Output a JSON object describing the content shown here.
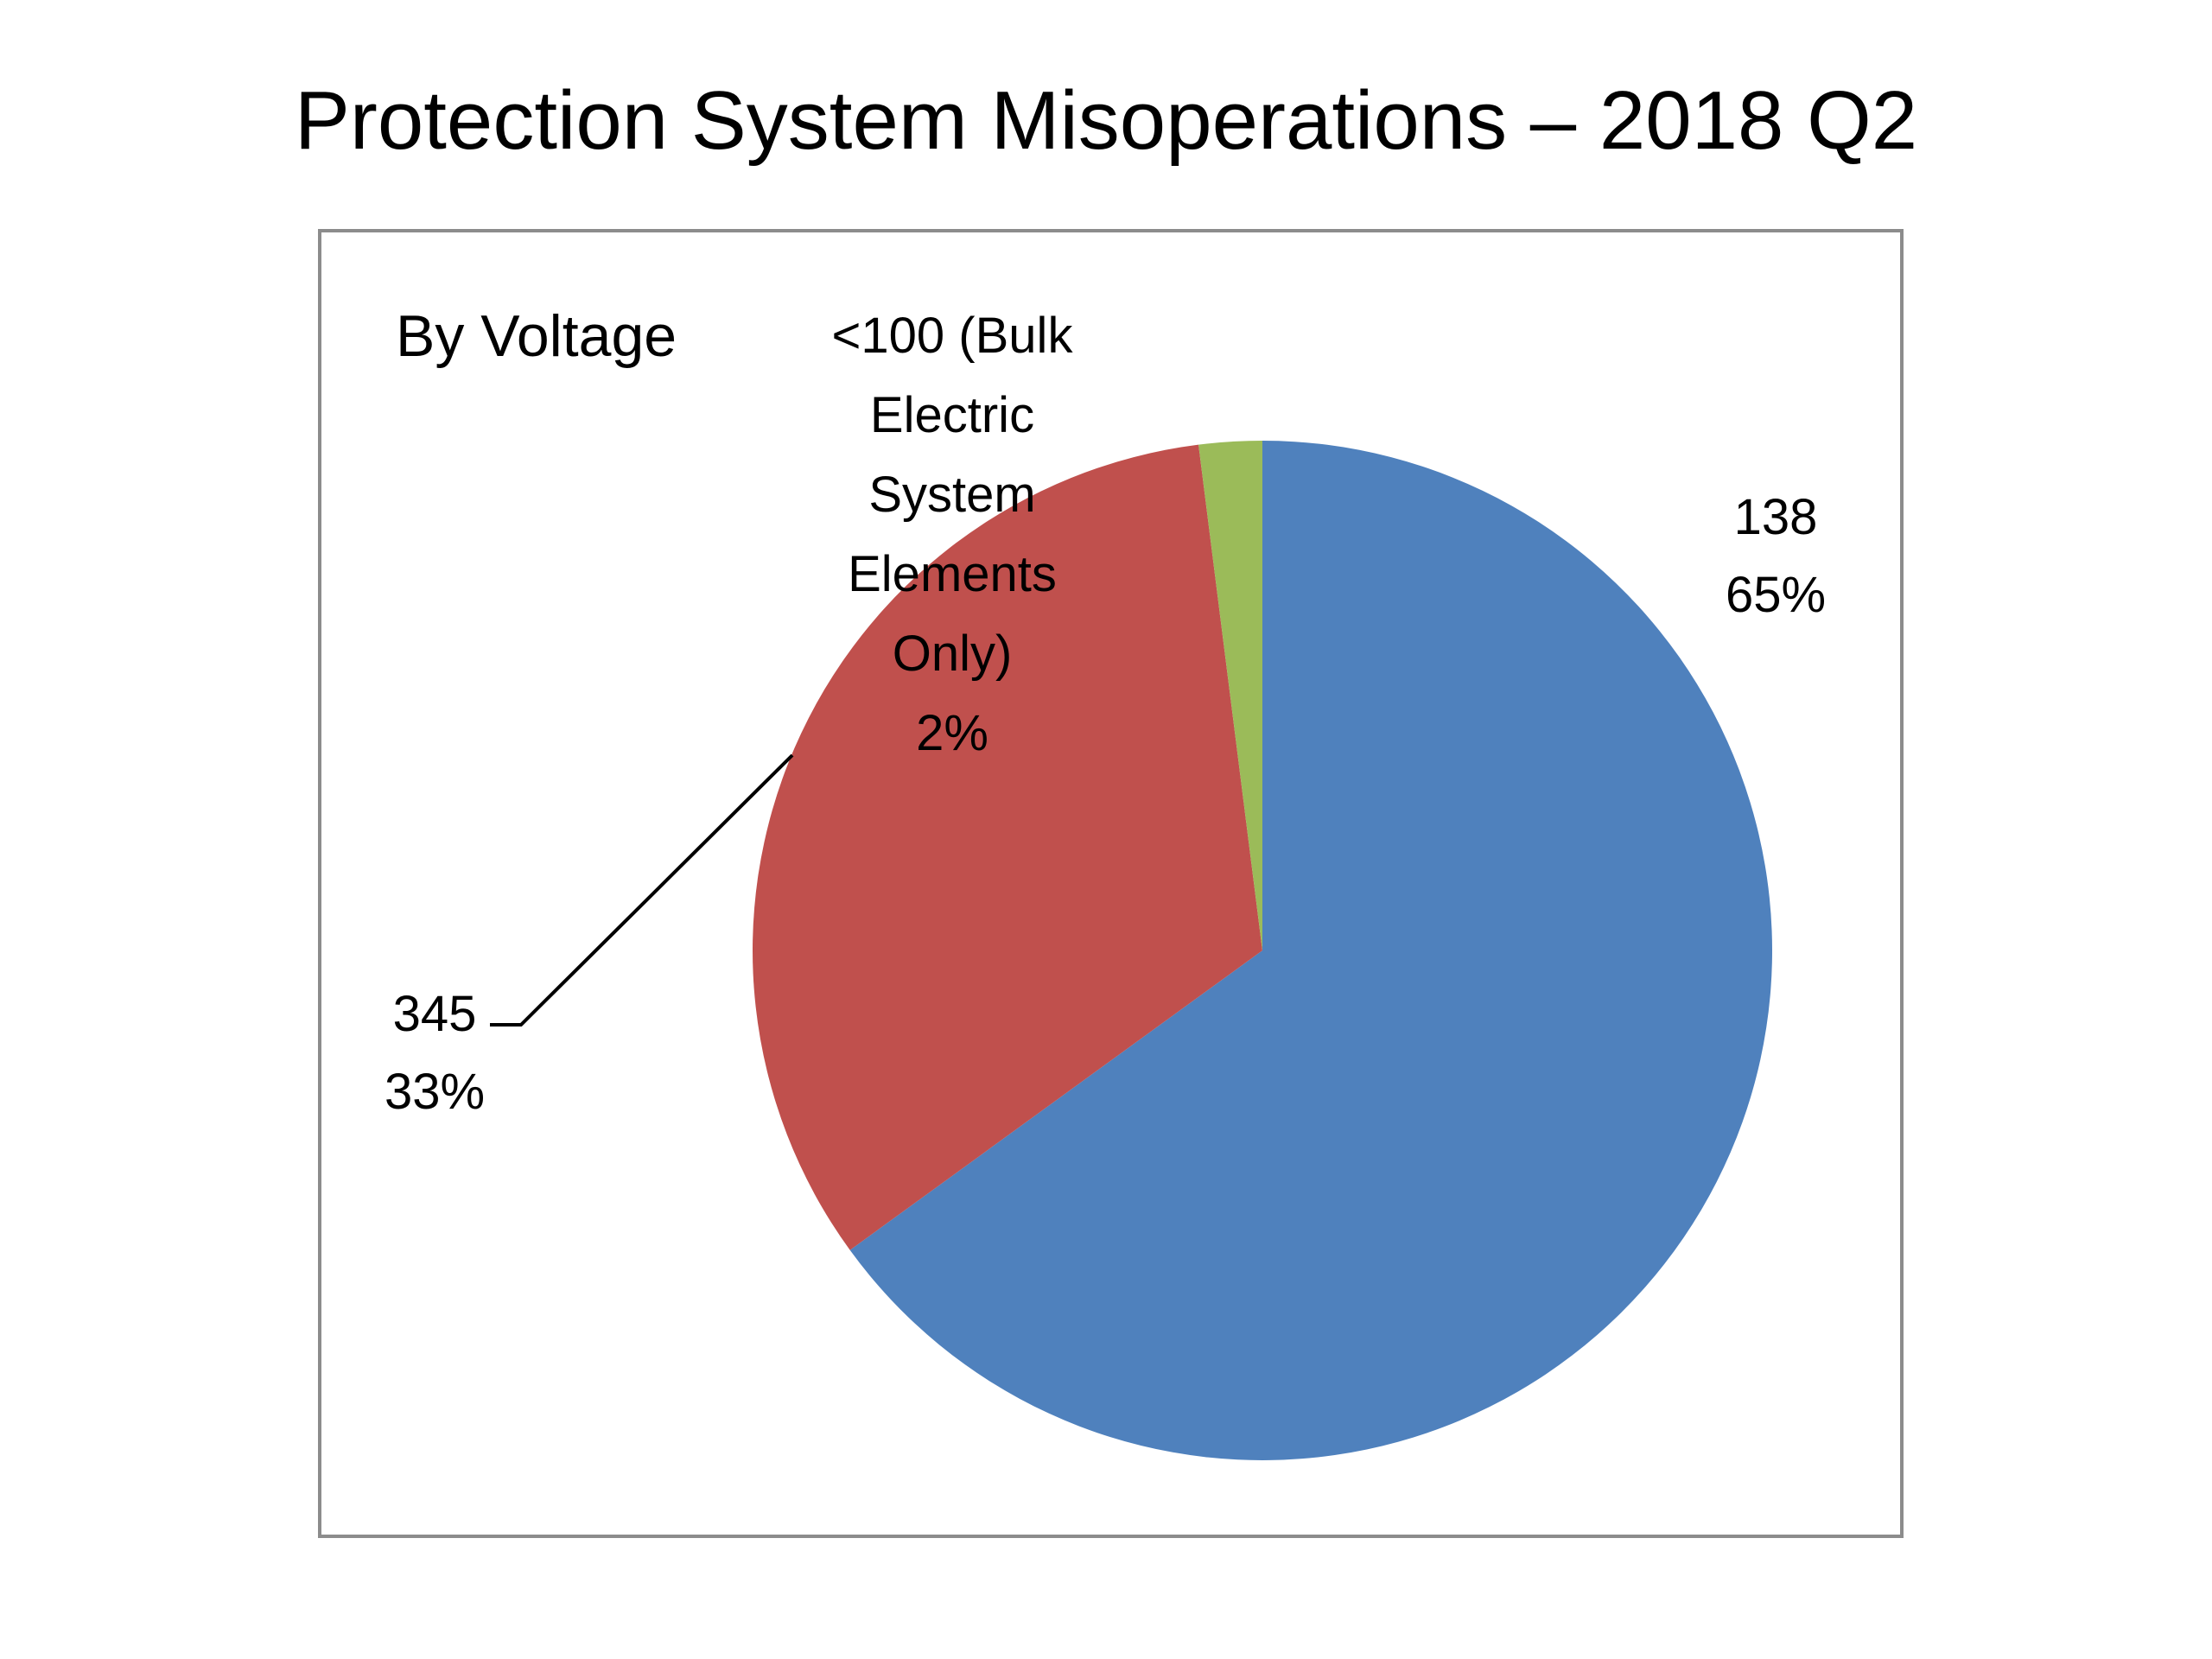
{
  "slide": {
    "title": "Protection System Misoperations – 2018 Q2"
  },
  "chart_data": {
    "type": "pie",
    "title": "By Voltage",
    "categories": [
      "138",
      "345",
      "<100 (Bulk Electric System Elements Only)"
    ],
    "values": [
      65,
      33,
      2
    ],
    "labels": [
      {
        "lines": [
          "138",
          "65%"
        ]
      },
      {
        "lines": [
          "345",
          "33%"
        ]
      },
      {
        "lines": [
          "<100 (Bulk",
          "Electric",
          "System",
          "Elements",
          "Only)",
          "2%"
        ]
      }
    ],
    "colors": [
      "#4F81BD",
      "#C0504D",
      "#9BBB59"
    ],
    "legend": "none",
    "start_angle": "12 o'clock",
    "direction": "clockwise"
  }
}
